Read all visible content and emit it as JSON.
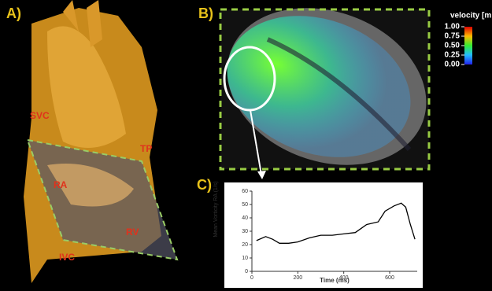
{
  "panel_a": {
    "label": "A)",
    "structures": [
      "SVC",
      "TP",
      "RA",
      "RV",
      "IVC"
    ]
  },
  "panel_b": {
    "label": "B)",
    "colorbar": {
      "title": "velocity [m",
      "clim": [
        0,
        1
      ],
      "ticks": [
        {
          "value": 1,
          "label": "1.00"
        },
        {
          "value": 0.75,
          "label": "0.75"
        },
        {
          "value": 0.5,
          "label": "0.50"
        },
        {
          "value": 0.25,
          "label": "0.25"
        },
        {
          "value": 0,
          "label": "0.00"
        }
      ]
    }
  },
  "panel_c": {
    "label": "C)"
  },
  "chart_data": {
    "type": "line",
    "xlabel": "Time (ms)",
    "ylabel": "Mean Vorticity RA (1/s)",
    "color": "#ffffff",
    "x": [
      20,
      60,
      90,
      120,
      160,
      200,
      250,
      300,
      350,
      400,
      450,
      500,
      550,
      580,
      620,
      650,
      670,
      690,
      710
    ],
    "values": [
      23,
      26,
      24,
      21,
      21,
      22,
      25,
      27,
      27,
      28,
      29,
      35,
      37,
      45,
      49,
      51,
      48,
      35,
      24
    ],
    "xlim": [
      0,
      720
    ],
    "ylim": [
      0,
      60
    ],
    "xticks": [
      0,
      200,
      400,
      600
    ],
    "yticks": [
      0,
      10,
      20,
      30,
      40,
      50,
      60
    ]
  }
}
